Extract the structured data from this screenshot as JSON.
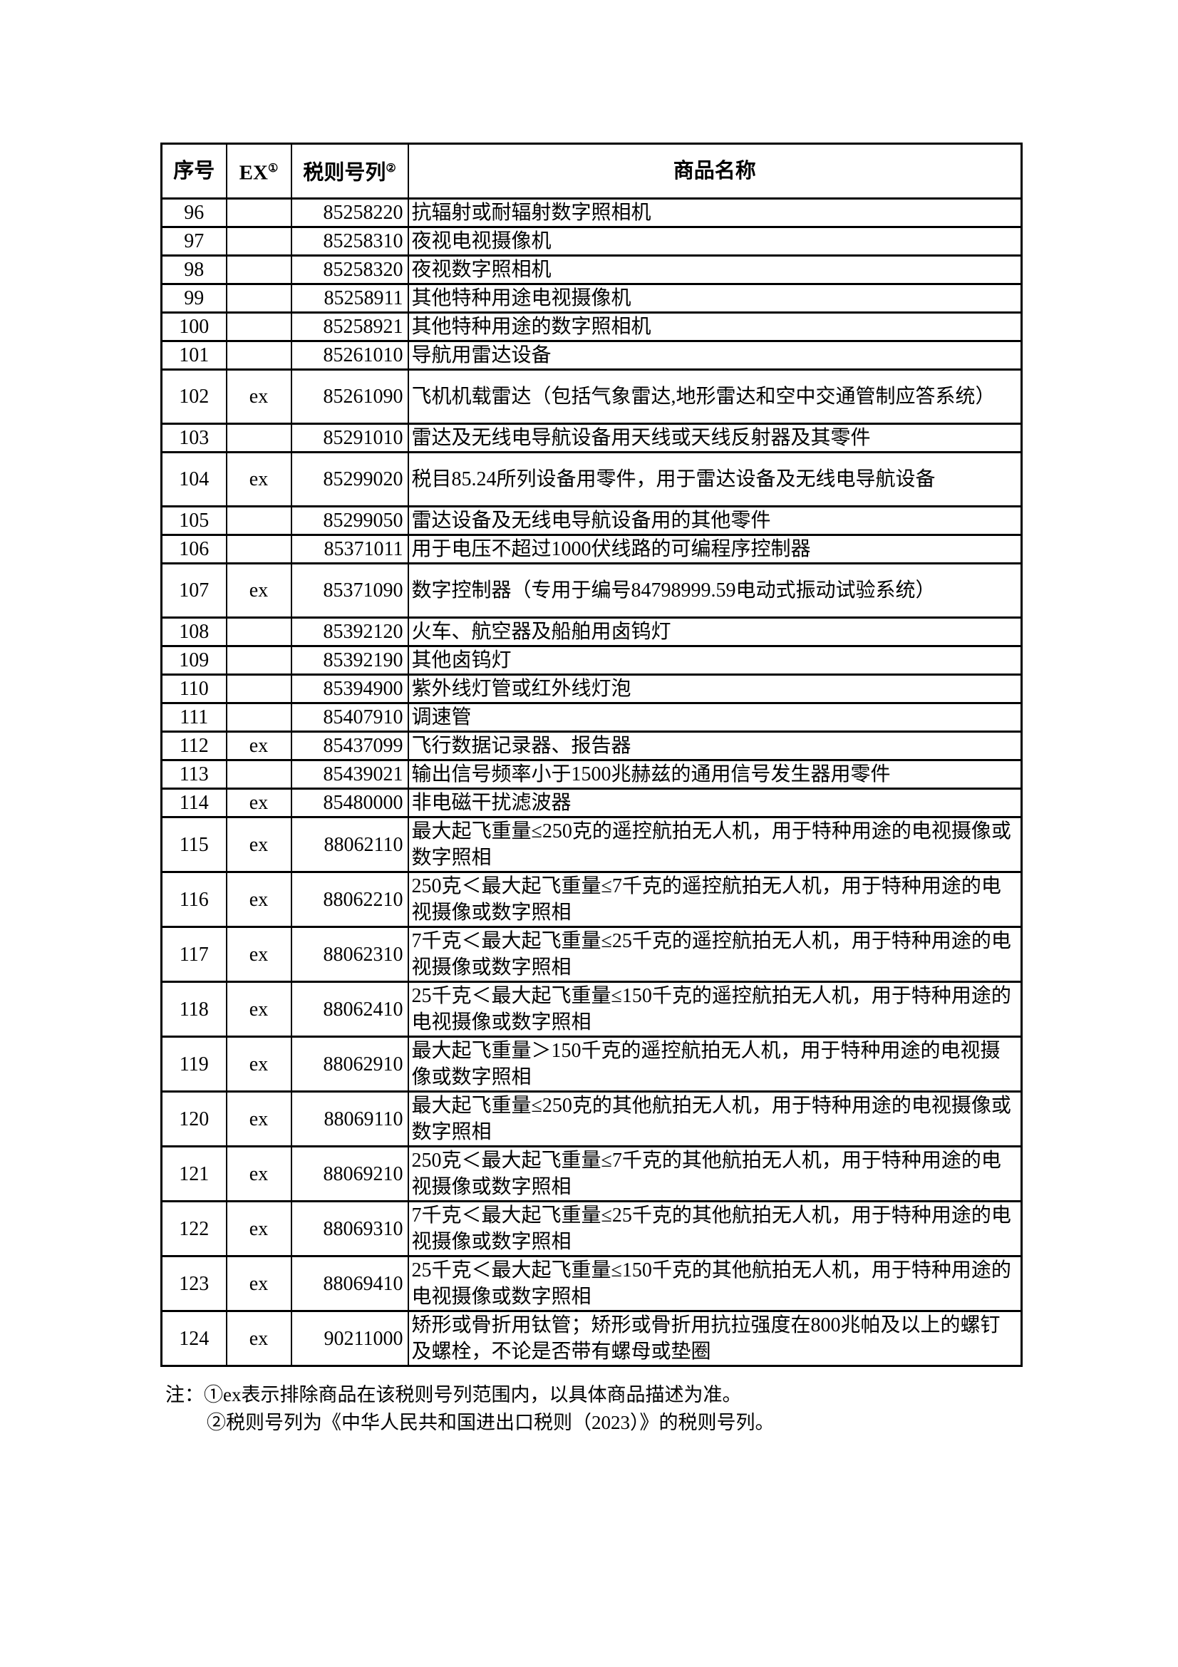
{
  "table": {
    "headers": {
      "no": "序号",
      "ex": "EX",
      "ex_sup": "①",
      "code": "税则号列",
      "code_sup": "②",
      "name": "商品名称"
    },
    "rows": [
      {
        "no": "96",
        "ex": "",
        "code": "85258220",
        "name": "抗辐射或耐辐射数字照相机"
      },
      {
        "no": "97",
        "ex": "",
        "code": "85258310",
        "name": "夜视电视摄像机"
      },
      {
        "no": "98",
        "ex": "",
        "code": "85258320",
        "name": "夜视数字照相机"
      },
      {
        "no": "99",
        "ex": "",
        "code": "85258911",
        "name": "其他特种用途电视摄像机"
      },
      {
        "no": "100",
        "ex": "",
        "code": "85258921",
        "name": "其他特种用途的数字照相机"
      },
      {
        "no": "101",
        "ex": "",
        "code": "85261010",
        "name": "导航用雷达设备"
      },
      {
        "no": "102",
        "ex": "ex",
        "code": "85261090",
        "name": "飞机机载雷达（包括气象雷达,地形雷达和空中交通管制应答系统）"
      },
      {
        "no": "103",
        "ex": "",
        "code": "85291010",
        "name": "雷达及无线电导航设备用天线或天线反射器及其零件"
      },
      {
        "no": "104",
        "ex": "ex",
        "code": "85299020",
        "name": "税目85.24所列设备用零件，用于雷达设备及无线电导航设备"
      },
      {
        "no": "105",
        "ex": "",
        "code": "85299050",
        "name": "雷达设备及无线电导航设备用的其他零件"
      },
      {
        "no": "106",
        "ex": "",
        "code": "85371011",
        "name": "用于电压不超过1000伏线路的可编程序控制器"
      },
      {
        "no": "107",
        "ex": "ex",
        "code": "85371090",
        "name": "数字控制器（专用于编号84798999.59电动式振动试验系统）"
      },
      {
        "no": "108",
        "ex": "",
        "code": "85392120",
        "name": "火车、航空器及船舶用卤钨灯"
      },
      {
        "no": "109",
        "ex": "",
        "code": "85392190",
        "name": "其他卤钨灯"
      },
      {
        "no": "110",
        "ex": "",
        "code": "85394900",
        "name": "紫外线灯管或红外线灯泡"
      },
      {
        "no": "111",
        "ex": "",
        "code": "85407910",
        "name": "调速管"
      },
      {
        "no": "112",
        "ex": "ex",
        "code": "85437099",
        "name": "飞行数据记录器、报告器"
      },
      {
        "no": "113",
        "ex": "",
        "code": "85439021",
        "name": "输出信号频率小于1500兆赫兹的通用信号发生器用零件"
      },
      {
        "no": "114",
        "ex": "ex",
        "code": "85480000",
        "name": "非电磁干扰滤波器"
      },
      {
        "no": "115",
        "ex": "ex",
        "code": "88062110",
        "name": "最大起飞重量≤250克的遥控航拍无人机，用于特种用途的电视摄像或数字照相"
      },
      {
        "no": "116",
        "ex": "ex",
        "code": "88062210",
        "name": "250克＜最大起飞重量≤7千克的遥控航拍无人机，用于特种用途的电视摄像或数字照相"
      },
      {
        "no": "117",
        "ex": "ex",
        "code": "88062310",
        "name": "7千克＜最大起飞重量≤25千克的遥控航拍无人机，用于特种用途的电视摄像或数字照相"
      },
      {
        "no": "118",
        "ex": "ex",
        "code": "88062410",
        "name": "25千克＜最大起飞重量≤150千克的遥控航拍无人机，用于特种用途的电视摄像或数字照相"
      },
      {
        "no": "119",
        "ex": "ex",
        "code": "88062910",
        "name": "最大起飞重量＞150千克的遥控航拍无人机，用于特种用途的电视摄像或数字照相"
      },
      {
        "no": "120",
        "ex": "ex",
        "code": "88069110",
        "name": "最大起飞重量≤250克的其他航拍无人机，用于特种用途的电视摄像或数字照相"
      },
      {
        "no": "121",
        "ex": "ex",
        "code": "88069210",
        "name": "250克＜最大起飞重量≤7千克的其他航拍无人机，用于特种用途的电视摄像或数字照相"
      },
      {
        "no": "122",
        "ex": "ex",
        "code": "88069310",
        "name": "7千克＜最大起飞重量≤25千克的其他航拍无人机，用于特种用途的电视摄像或数字照相"
      },
      {
        "no": "123",
        "ex": "ex",
        "code": "88069410",
        "name": "25千克＜最大起飞重量≤150千克的其他航拍无人机，用于特种用途的电视摄像或数字照相"
      },
      {
        "no": "124",
        "ex": "ex",
        "code": "90211000",
        "name": "矫形或骨折用钛管；矫形或骨折用抗拉强度在800兆帕及以上的螺钉及螺栓，不论是否带有螺母或垫圈"
      }
    ]
  },
  "notes": {
    "line1": "注：①ex表示排除商品在该税则号列范围内，以具体商品描述为准。",
    "line2": "②税则号列为《中华人民共和国进出口税则（2023）》的税则号列。"
  }
}
